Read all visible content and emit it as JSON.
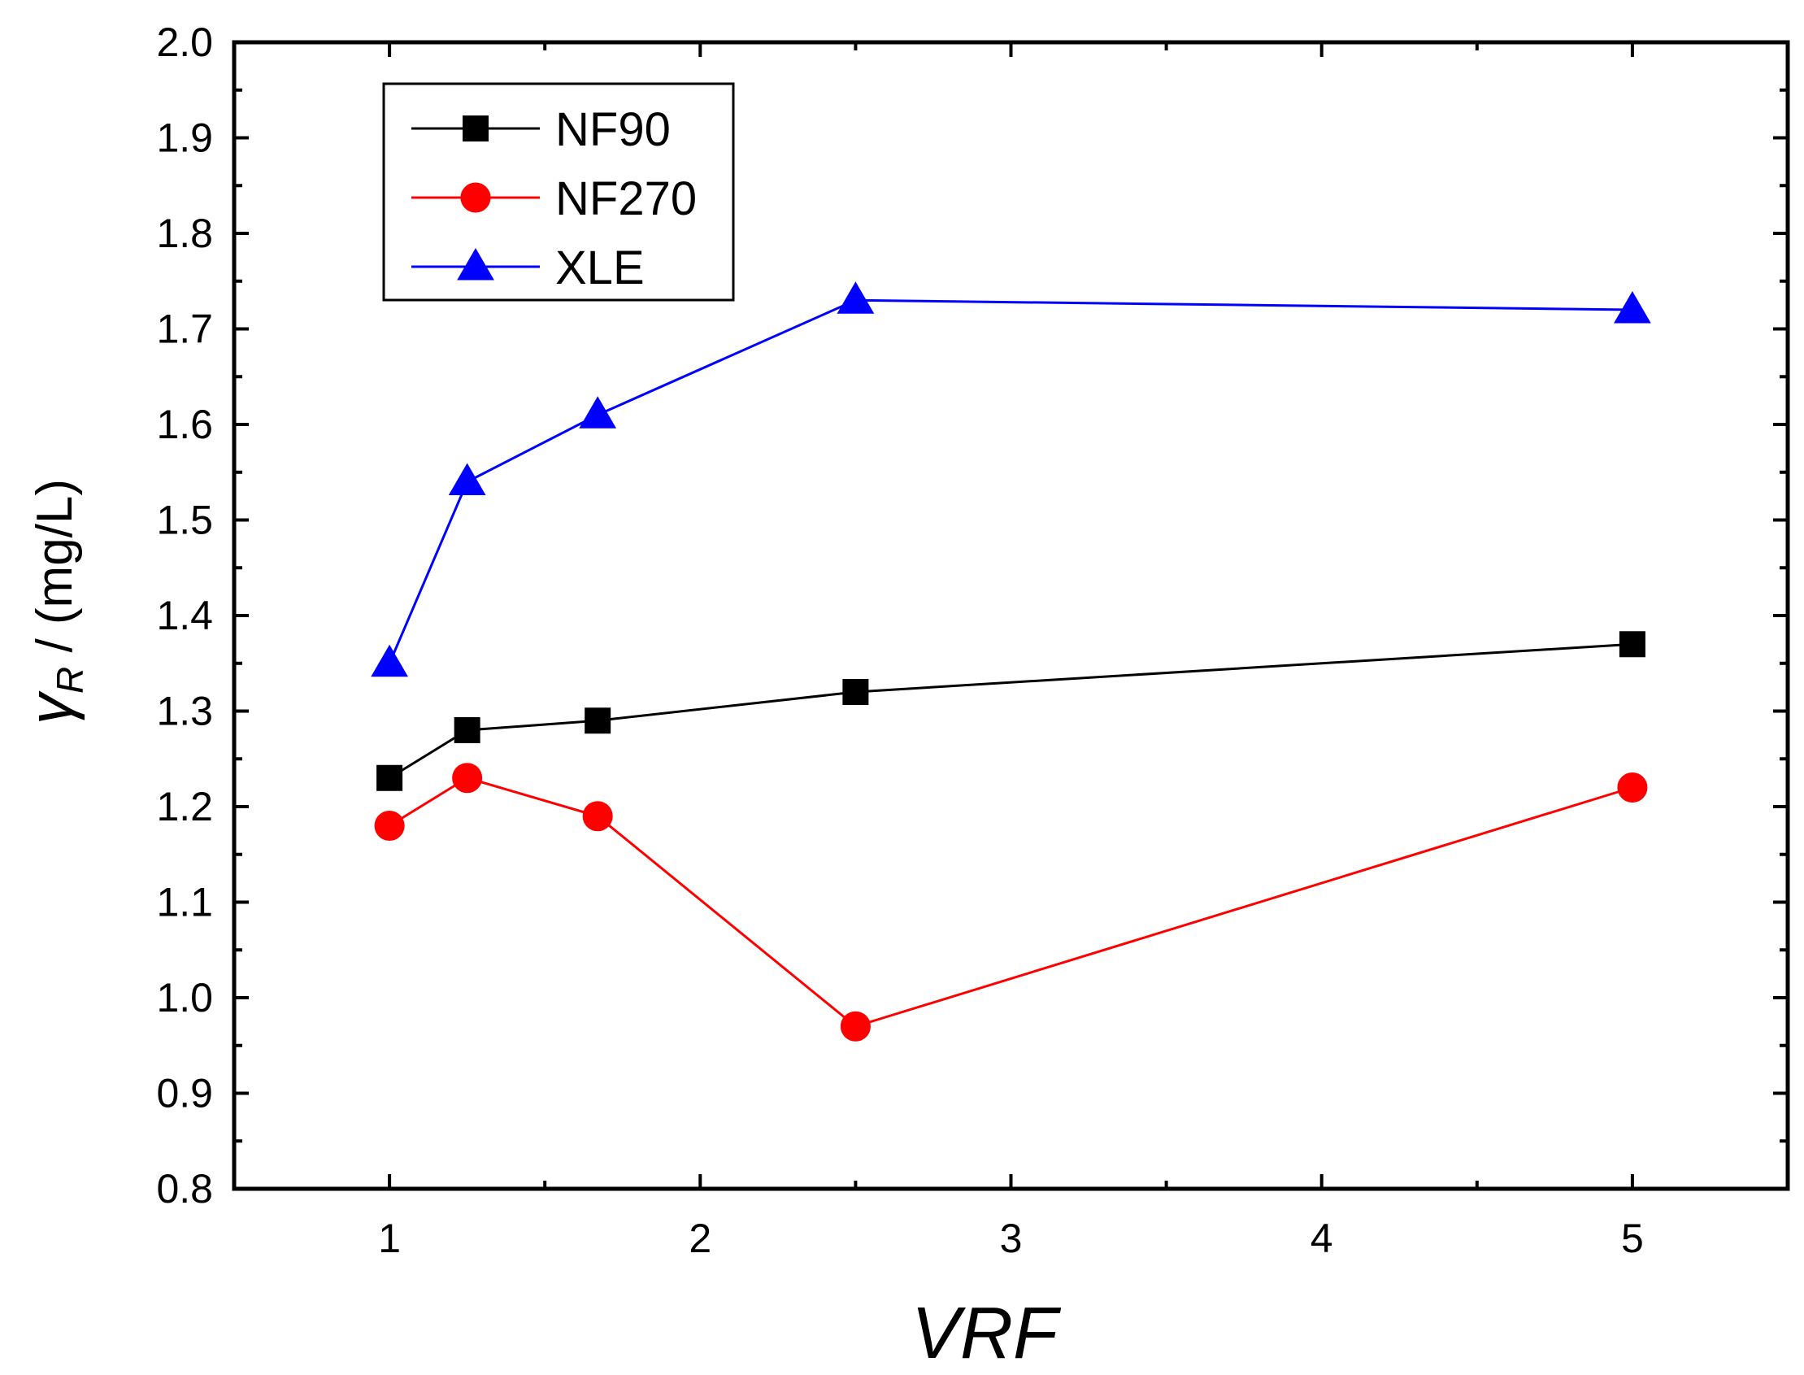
{
  "chart_data": {
    "type": "line",
    "title": "",
    "xlabel": "VRF",
    "ylabel": {
      "symbol": "γ",
      "subscript": "R",
      "unit": " / (mg/L)"
    },
    "xlim": [
      0.5,
      5.5
    ],
    "ylim": [
      0.8,
      2.0
    ],
    "x_ticks": [
      1,
      2,
      3,
      4,
      5
    ],
    "x_tick_labels": [
      "1",
      "2",
      "3",
      "4",
      "5"
    ],
    "x_minor_ticks": [
      1.5,
      2.5,
      3.5,
      4.5
    ],
    "y_ticks": [
      0.8,
      0.9,
      1.0,
      1.1,
      1.2,
      1.3,
      1.4,
      1.5,
      1.6,
      1.7,
      1.8,
      1.9,
      2.0
    ],
    "y_tick_labels": [
      "0.8",
      "0.9",
      "1.0",
      "1.1",
      "1.2",
      "1.3",
      "1.4",
      "1.5",
      "1.6",
      "1.7",
      "1.8",
      "1.9",
      "2.0"
    ],
    "grid": false,
    "legend_position": "top-left",
    "series": [
      {
        "name": "NF90",
        "color": "#000000",
        "marker": "square",
        "x": [
          1,
          1.25,
          1.67,
          2.5,
          5
        ],
        "values": [
          1.23,
          1.28,
          1.29,
          1.32,
          1.37
        ]
      },
      {
        "name": "NF270",
        "color": "#ff0000",
        "marker": "circle",
        "x": [
          1,
          1.25,
          1.67,
          2.5,
          5
        ],
        "values": [
          1.18,
          1.23,
          1.19,
          0.97,
          1.22
        ]
      },
      {
        "name": "XLE",
        "color": "#0000ff",
        "marker": "triangle",
        "x": [
          1,
          1.25,
          1.67,
          2.5,
          5
        ],
        "values": [
          1.35,
          1.54,
          1.61,
          1.73,
          1.72
        ]
      }
    ]
  }
}
